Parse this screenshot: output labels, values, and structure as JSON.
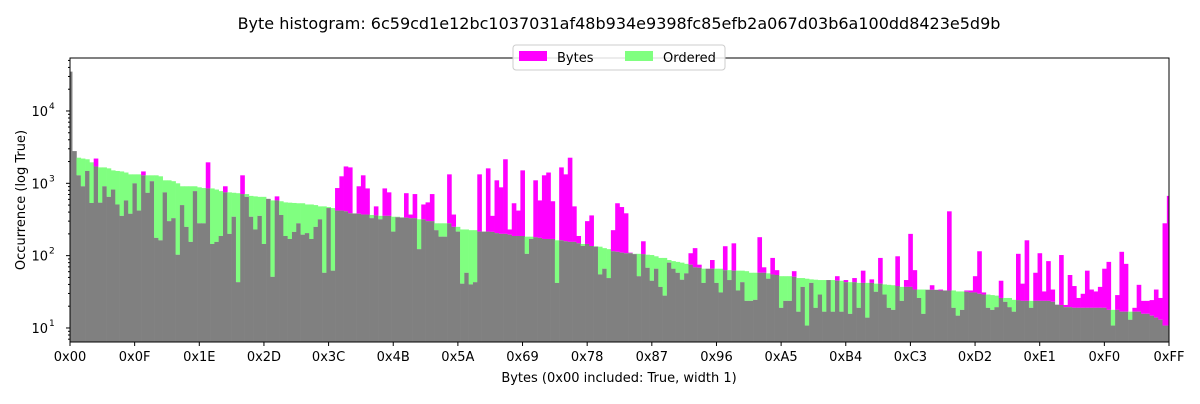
{
  "chart_data": {
    "type": "bar",
    "title": "Byte histogram: 6c59cd1e12bc1037031af48b934e9398fc85efb2a067d03b6a100dd8423e5d9b",
    "xlabel": "Bytes (0x00 included: True, width 1)",
    "ylabel": "Occurrence (log True)",
    "yscale": "log",
    "ylim": [
      6.4,
      54000
    ],
    "xlim": [
      0,
      255
    ],
    "x_ticks": [
      "0x00",
      "0x0F",
      "0x1E",
      "0x2D",
      "0x3C",
      "0x4B",
      "0x5A",
      "0x69",
      "0x78",
      "0x87",
      "0x96",
      "0xA5",
      "0xB4",
      "0xC3",
      "0xD2",
      "0xE1",
      "0xF0",
      "0xFF"
    ],
    "y_ticks": [
      {
        "base": "10",
        "exp": "1",
        "value": 10
      },
      {
        "base": "10",
        "exp": "2",
        "value": 100
      },
      {
        "base": "10",
        "exp": "3",
        "value": 1000
      },
      {
        "base": "10",
        "exp": "4",
        "value": 10000
      }
    ],
    "legend": {
      "placement": "top-center",
      "entries": [
        "Bytes",
        "Ordered"
      ]
    },
    "colors": {
      "Bytes": "#ff00ff",
      "Ordered": "#80ff80",
      "overlap": "#808080"
    },
    "series": [
      {
        "name": "Bytes",
        "values": [
          35000,
          2790,
          1290,
          910,
          1480,
          535,
          2200,
          540,
          910,
          650,
          820,
          510,
          355,
          580,
          380,
          1000,
          420,
          1460,
          740,
          1070,
          176,
          163,
          750,
          300,
          330,
          103,
          500,
          250,
          155,
          780,
          280,
          280,
          1950,
          145,
          155,
          187,
          910,
          200,
          345,
          43,
          1290,
          650,
          345,
          230,
          355,
          145,
          610,
          51,
          660,
          365,
          187,
          170,
          213,
          280,
          195,
          205,
          170,
          250,
          318,
          58,
          455,
          62,
          860,
          1250,
          1710,
          1660,
          383,
          910,
          1290,
          850,
          330,
          480,
          318,
          850,
          750,
          215,
          340,
          335,
          730,
          370,
          710,
          123,
          510,
          545,
          710,
          225,
          183,
          183,
          1330,
          370,
          215,
          41,
          58,
          40,
          43,
          1330,
          215,
          1610,
          355,
          1100,
          880,
          2150,
          230,
          530,
          420,
          1510,
          106,
          170,
          1100,
          580,
          1290,
          1410,
          565,
          42,
          1660,
          1330,
          2260,
          480,
          187,
          136,
          300,
          360,
          133,
          55,
          66,
          49,
          225,
          530,
          470,
          385,
          110,
          105,
          52,
          158,
          68,
          45,
          66,
          37,
          28,
          80,
          66,
          58,
          46.5,
          57,
          108,
          127,
          75,
          42,
          66,
          87,
          42,
          31,
          135,
          46,
          148,
          33,
          43,
          23.7,
          23.7,
          24.5,
          180,
          69,
          48,
          93,
          63,
          19,
          23.7,
          23.7,
          61,
          16.8,
          37,
          10.8,
          42,
          19,
          29,
          16.8,
          46,
          16.8,
          52,
          16.8,
          46,
          15.7,
          49,
          19,
          62,
          13.9,
          47,
          31.7,
          93,
          29,
          19,
          17.8,
          98,
          23.7,
          46,
          200,
          63,
          26,
          15.7,
          33.7,
          39,
          33.7,
          34,
          33,
          410,
          19,
          14.8,
          17.8,
          33,
          33,
          52,
          115,
          31,
          19,
          17.8,
          19.4,
          45,
          23,
          19.4,
          16.8,
          106,
          41,
          163,
          19,
          58,
          108,
          32,
          84,
          34,
          21,
          102,
          20.8,
          54,
          38,
          26,
          29.7,
          62,
          34,
          32,
          37,
          66,
          82,
          10.8,
          28.5,
          113,
          77,
          13,
          19,
          39.5,
          23.7,
          23.7,
          24.3,
          34,
          26,
          280,
          670
        ]
      },
      {
        "name": "Ordered",
        "derived": "Bytes sorted descending"
      }
    ]
  }
}
